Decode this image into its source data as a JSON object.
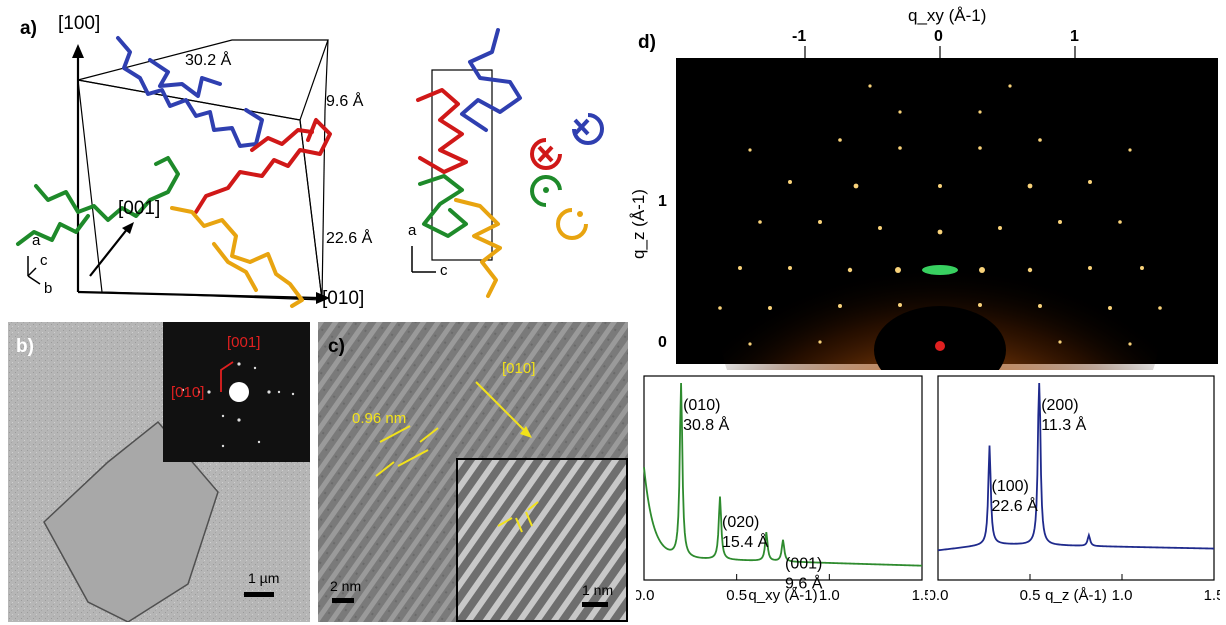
{
  "panels": {
    "a": {
      "label": "a)",
      "axis_100": "[100]",
      "axis_001": "[001]",
      "axis_010": "[010]",
      "dim_30": "30.2 Å",
      "dim_9": "9.6 Å",
      "dim_22": "22.6 Å",
      "triad_a": "a",
      "triad_c": "c",
      "triad_b": "b",
      "triad2_a": "a",
      "triad2_c": "c"
    },
    "b": {
      "label": "b)",
      "dir_001": "[001]",
      "dir_010": "[010]",
      "scale": "1 µm"
    },
    "c": {
      "label": "c)",
      "spacing": "0.96 nm",
      "dir_010": "[010]",
      "scale_main": "2 nm",
      "scale_inset": "1 nm"
    },
    "d": {
      "label": "d)",
      "top_ticks": [
        "-1",
        "0",
        "1"
      ],
      "left_ticks": [
        "1",
        "0"
      ]
    }
  },
  "chart_data": [
    {
      "type": "heatmap",
      "title": "",
      "xlabel": "q_xy (Å-1)",
      "ylabel": "q_z (Å-1)",
      "x_ticks": [
        -1,
        0,
        1
      ],
      "y_ticks": [
        0,
        1
      ],
      "colors": {
        "background": "#000000",
        "glow": "#ff8c1a",
        "spot": "#ffe08a",
        "beam_stop": "#e02020"
      }
    },
    {
      "type": "line",
      "title": "",
      "xlabel": "q_xy (Å-1)",
      "ylabel": "",
      "xlim": [
        0.0,
        1.5
      ],
      "x_ticks": [
        "0.0",
        "0.5",
        "1.0",
        "1.5"
      ],
      "color": "#2e8b2e",
      "peaks": [
        {
          "q": 0.2,
          "intensity": 1.0,
          "label": "(010)",
          "d": "30.8 Å"
        },
        {
          "q": 0.41,
          "intensity": 0.35,
          "label": "(020)",
          "d": "15.4 Å"
        },
        {
          "q": 0.66,
          "intensity": 0.16,
          "label": "",
          "d": ""
        },
        {
          "q": 0.75,
          "intensity": 0.12,
          "label": "(001)",
          "d": "9.6 Å"
        }
      ]
    },
    {
      "type": "line",
      "title": "",
      "xlabel": "q_z (Å-1)",
      "ylabel": "",
      "xlim": [
        0.0,
        1.5
      ],
      "x_ticks": [
        "0.0",
        "0.5",
        "1.0",
        "1.5"
      ],
      "color": "#1f2a8c",
      "peaks": [
        {
          "q": 0.28,
          "intensity": 0.55,
          "label": "(100)",
          "d": "22.6 Å"
        },
        {
          "q": 0.55,
          "intensity": 1.0,
          "label": "(200)",
          "d": "11.3 Å"
        },
        {
          "q": 0.82,
          "intensity": 0.06,
          "label": "",
          "d": ""
        }
      ]
    }
  ]
}
